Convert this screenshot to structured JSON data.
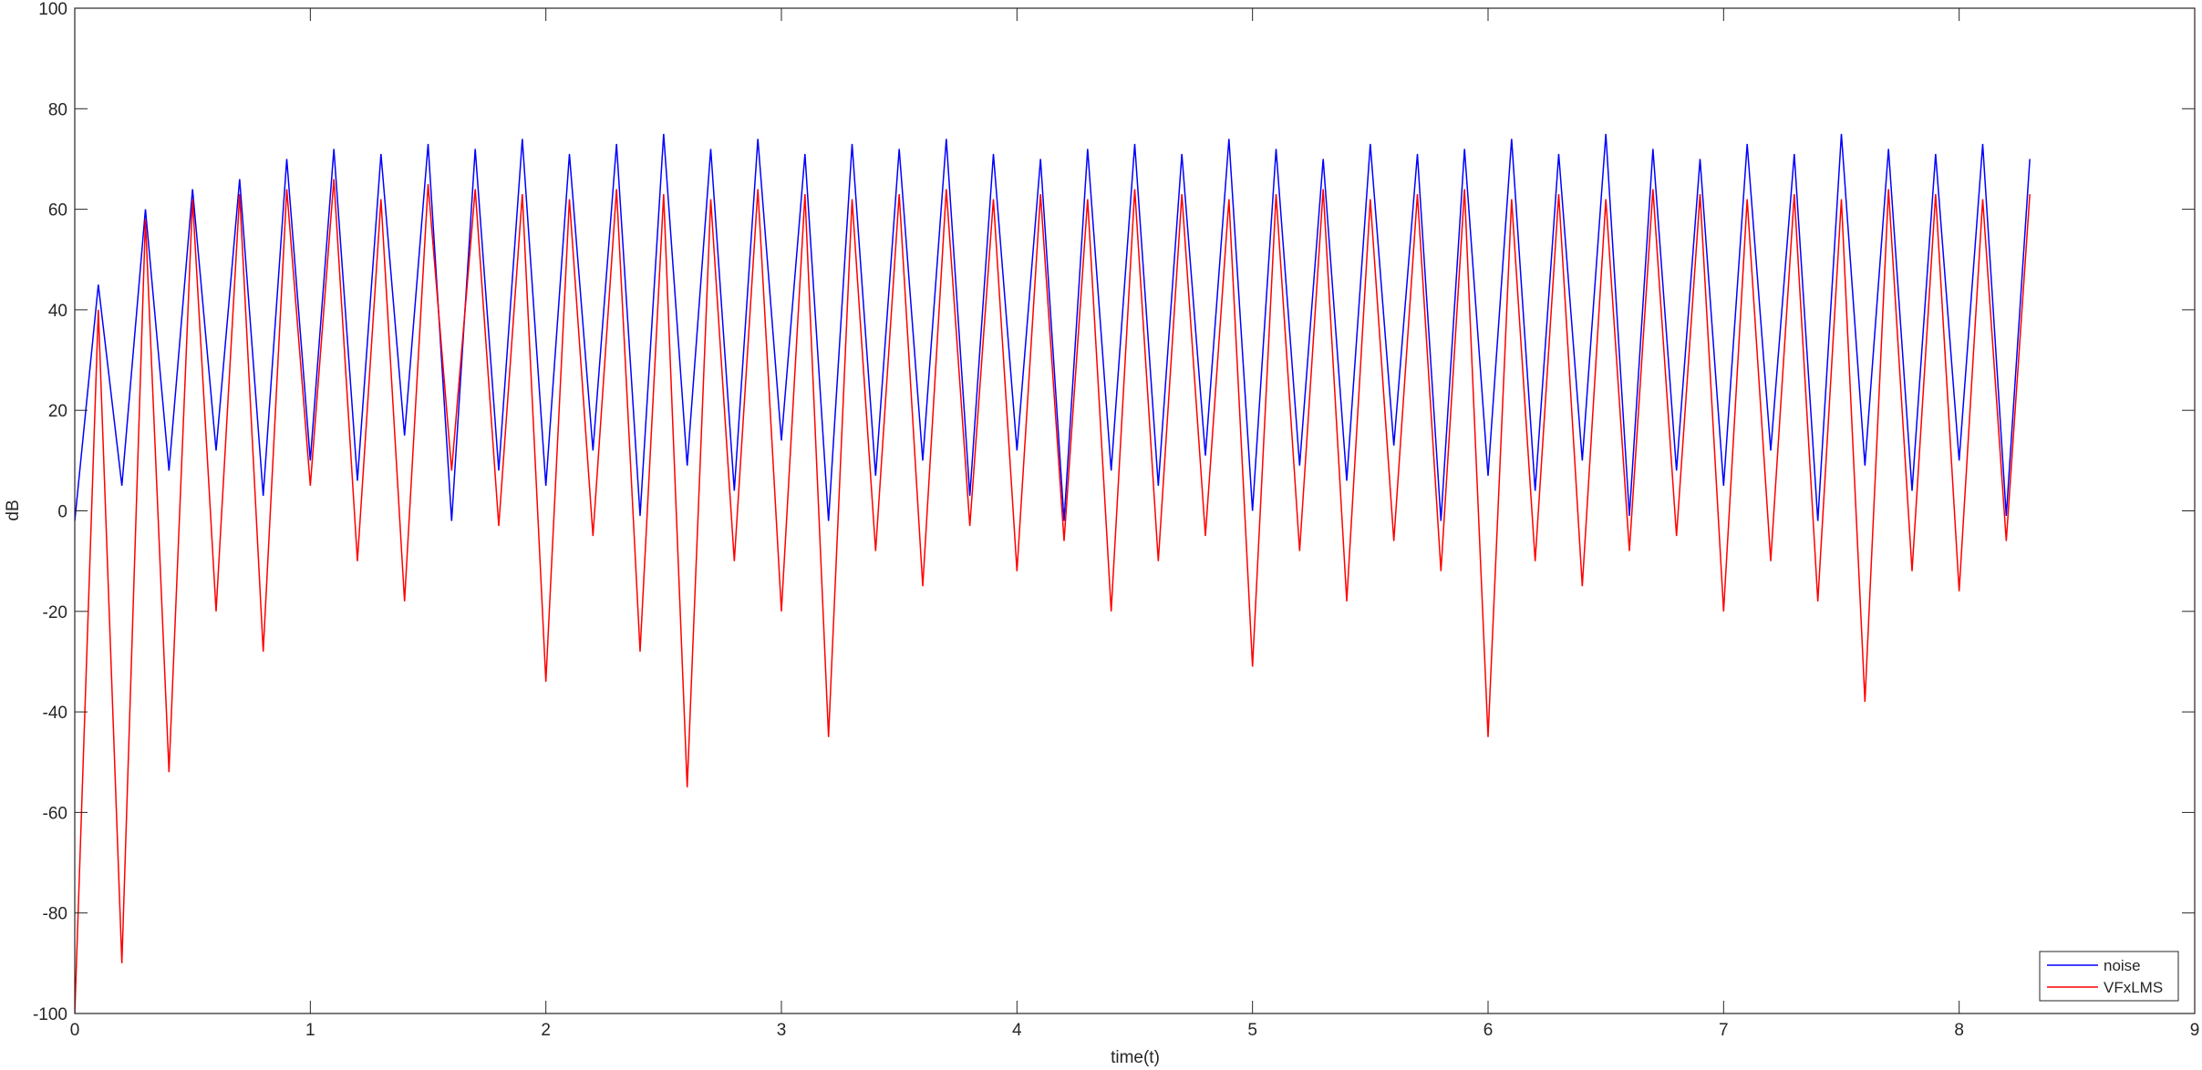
{
  "chart_data": {
    "type": "line",
    "x_label": "time(t)",
    "y_label": "dB",
    "x": [
      0,
      0.1,
      0.2,
      0.3,
      0.4,
      0.5,
      0.6,
      0.7,
      0.8,
      0.9,
      1,
      1.1,
      1.2,
      1.3,
      1.4,
      1.5,
      1.6,
      1.7,
      1.8,
      1.9,
      2,
      2.1,
      2.2,
      2.3,
      2.4,
      2.5,
      2.6,
      2.7,
      2.8,
      2.9,
      3,
      3.1,
      3.2,
      3.3,
      3.4,
      3.5,
      3.6,
      3.7,
      3.8,
      3.9,
      4,
      4.1,
      4.2,
      4.3,
      4.4,
      4.5,
      4.6,
      4.7,
      4.8,
      4.9,
      5,
      5.1,
      5.2,
      5.3,
      5.4,
      5.5,
      5.6,
      5.7,
      5.8,
      5.9,
      6,
      6.1,
      6.2,
      6.3,
      6.4,
      6.5,
      6.6,
      6.7,
      6.8,
      6.9,
      7,
      7.1,
      7.2,
      7.3,
      7.4,
      7.5,
      7.6,
      7.7,
      7.8,
      7.9,
      8,
      8.1,
      8.2,
      8.3
    ],
    "series": [
      {
        "name": "noise",
        "color": "#0000ff",
        "values": [
          -2,
          45,
          5,
          60,
          8,
          64,
          12,
          66,
          3,
          70,
          10,
          72,
          6,
          71,
          15,
          73,
          -2,
          72,
          8,
          74,
          5,
          71,
          12,
          73,
          -1,
          75,
          9,
          72,
          4,
          74,
          14,
          71,
          -2,
          73,
          7,
          72,
          10,
          74,
          3,
          71,
          12,
          70,
          -2,
          72,
          8,
          73,
          5,
          71,
          11,
          74,
          0,
          72,
          9,
          70,
          6,
          73,
          13,
          71,
          -2,
          72,
          7,
          74,
          4,
          71,
          10,
          75,
          -1,
          72,
          8,
          70,
          5,
          73,
          12,
          71,
          -2,
          75,
          9,
          72,
          4,
          71,
          10,
          73,
          -1,
          70
        ]
      },
      {
        "name": "VFxLMS",
        "color": "#ff0000",
        "values": [
          -100,
          40,
          -90,
          58,
          -52,
          62,
          -20,
          63,
          -28,
          64,
          5,
          66,
          -10,
          62,
          -18,
          65,
          8,
          64,
          -3,
          63,
          -34,
          62,
          -5,
          64,
          -28,
          63,
          -55,
          62,
          -10,
          64,
          -20,
          63,
          -45,
          62,
          -8,
          63,
          -15,
          64,
          -3,
          62,
          -12,
          63,
          -6,
          62,
          -20,
          64,
          -10,
          63,
          -5,
          62,
          -31,
          63,
          -8,
          64,
          -18,
          62,
          -6,
          63,
          -12,
          64,
          -45,
          62,
          -10,
          63,
          -15,
          62,
          -8,
          64,
          -5,
          63,
          -20,
          62,
          -10,
          63,
          -18,
          62,
          -38,
          64,
          -12,
          63,
          -16,
          62,
          -6,
          63
        ]
      }
    ],
    "xlim": [
      0,
      9
    ],
    "xticks": [
      0,
      1,
      2,
      3,
      4,
      5,
      6,
      7,
      8,
      9
    ],
    "ylim": [
      -100,
      100
    ],
    "yticks": [
      -100,
      -80,
      -60,
      -40,
      -20,
      0,
      20,
      40,
      60,
      80,
      100
    ],
    "grid": false,
    "legend_position": "lower right"
  }
}
